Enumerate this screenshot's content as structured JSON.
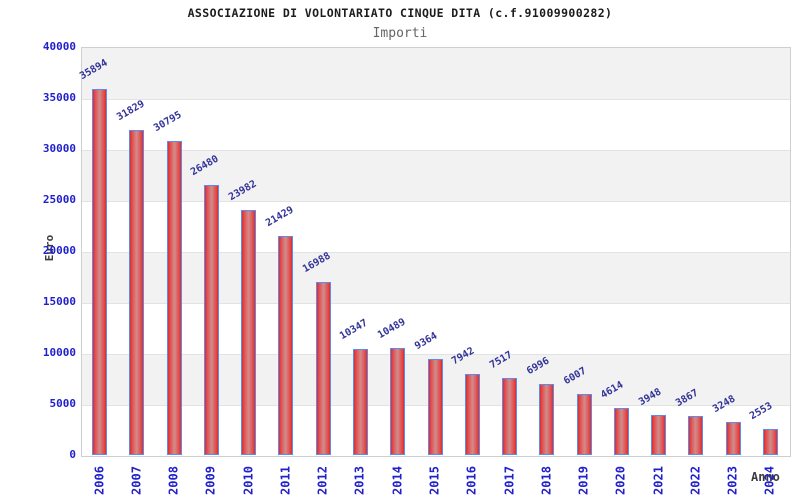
{
  "chart_data": {
    "type": "bar",
    "title": "ASSOCIAZIONE DI VOLONTARIATO CINQUE DITA (c.f.91009900282)",
    "subtitle": "Importi",
    "xlabel": "Anno",
    "ylabel": "Euro",
    "categories": [
      "2006",
      "2007",
      "2008",
      "2009",
      "2010",
      "2011",
      "2012",
      "2013",
      "2014",
      "2015",
      "2016",
      "2017",
      "2018",
      "2019",
      "2020",
      "2021",
      "2022",
      "2023",
      "2024"
    ],
    "values": [
      35894,
      31829,
      30795,
      26480,
      23982,
      21429,
      16988,
      10347,
      10489,
      9364,
      7942,
      7517,
      6996,
      6007,
      4614,
      3948,
      3867,
      3248,
      2553
    ],
    "yticks": [
      0,
      5000,
      10000,
      15000,
      20000,
      25000,
      30000,
      35000,
      40000
    ],
    "ylim": [
      0,
      40000
    ],
    "legend": "none",
    "grid": "horizontal-bands",
    "colors": {
      "bar_edge": "#5b8dee",
      "bar_fill_dark": "#dd2c2c",
      "bar_fill_light": "#cf8d8d",
      "axis_tick_label": "#2121cc",
      "value_label": "#333399",
      "band_gray": "#f2f2f2",
      "band_white": "#ffffff",
      "plot_border": "#cfcfcf",
      "title": "#1c1c1c",
      "subtitle": "#666666",
      "axis_title": "#3d3d3d"
    }
  }
}
